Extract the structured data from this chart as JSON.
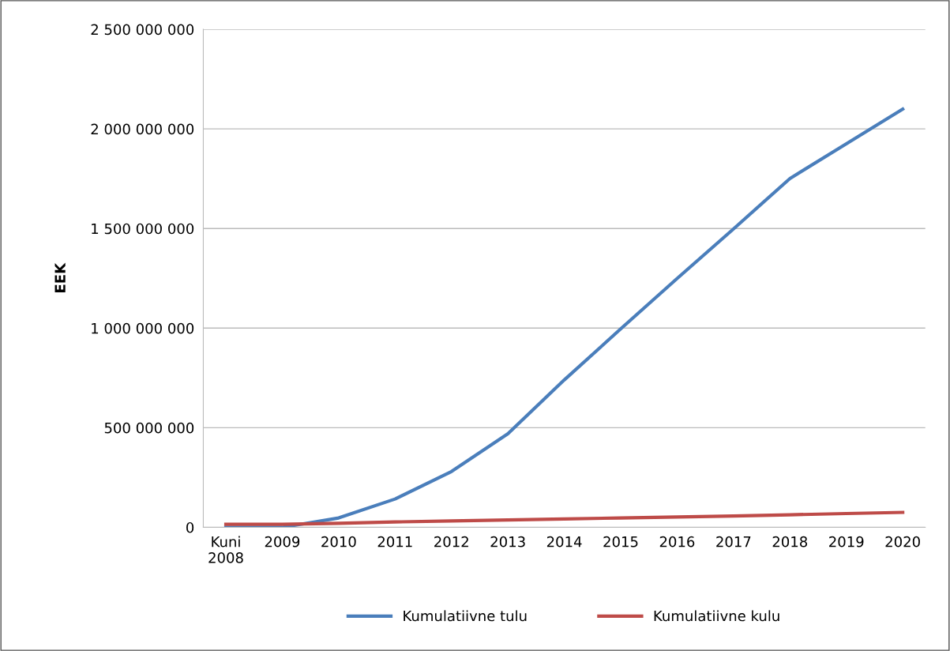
{
  "chart_data": {
    "type": "line",
    "ylabel": "EEK",
    "categories": [
      "Kuni\n2008",
      "2009",
      "2010",
      "2011",
      "2012",
      "2013",
      "2014",
      "2015",
      "2016",
      "2017",
      "2018",
      "2019",
      "2020"
    ],
    "series": [
      {
        "name": "Kumulatiivne tulu",
        "color": "#4a7ebb",
        "values": [
          0,
          0,
          47000000,
          142000000,
          280000000,
          470000000,
          740000000,
          996000000,
          1249000000,
          1498000000,
          1751000000,
          1925000000,
          2099000000
        ]
      },
      {
        "name": "Kumulatiivne kulu",
        "color": "#be4b48",
        "values": [
          15000000,
          15000000,
          20000000,
          27000000,
          32000000,
          37000000,
          42000000,
          47000000,
          52000000,
          57000000,
          63000000,
          69000000,
          75000000
        ]
      }
    ],
    "ylim": [
      0,
      2500000000
    ],
    "yticks": [
      {
        "value": 0,
        "label": "0"
      },
      {
        "value": 500000000,
        "label": "500 000 000"
      },
      {
        "value": 1000000000,
        "label": "1 000 000 000"
      },
      {
        "value": 1500000000,
        "label": "1 500 000 000"
      },
      {
        "value": 2000000000,
        "label": "2 000 000 000"
      },
      {
        "value": 2500000000,
        "label": "2 500 000 000"
      }
    ],
    "grid": "y",
    "legend": "bottom",
    "marker": "none",
    "line_style": "solid"
  }
}
